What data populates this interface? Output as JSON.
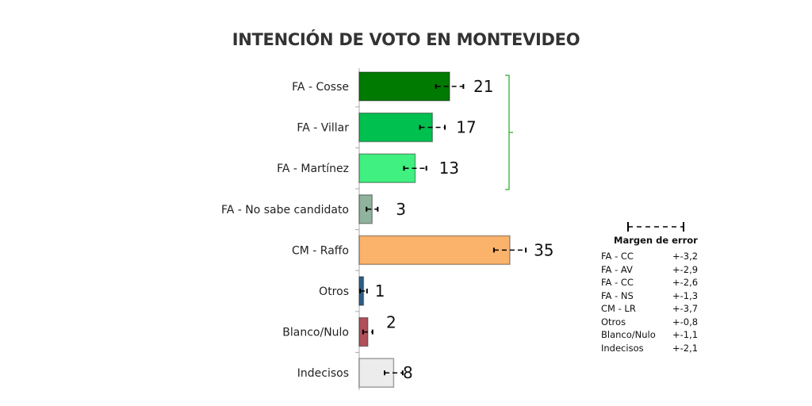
{
  "chart_data": {
    "type": "bar",
    "orientation": "horizontal",
    "title": "INTENCIÓN DE VOTO EN MONTEVIDEO",
    "categories": [
      "FA - Cosse",
      "FA - Villar",
      "FA - Martínez",
      "FA - No sabe candidato",
      "CM - Raffo",
      "Otros",
      "Blanco/Nulo",
      "Indecisos"
    ],
    "values": [
      21,
      17,
      13,
      3,
      35,
      1,
      2,
      8
    ],
    "errors": [
      3.2,
      2.9,
      2.6,
      1.3,
      3.7,
      0.8,
      1.1,
      2.1
    ],
    "colors": [
      "#007a00",
      "#00c050",
      "#40f080",
      "#8fb39c",
      "#fbb36c",
      "#2f5f8a",
      "#b0505c",
      "#ececec"
    ],
    "bracket_color": "#4cb84c",
    "xlim": [
      0,
      35
    ],
    "legend": {
      "title": "Margen de error",
      "rows": [
        [
          "FA - CC",
          "+-3,2"
        ],
        [
          "FA - AV",
          "+-2,9"
        ],
        [
          "FA - CC",
          "+-2,6"
        ],
        [
          "FA - NS",
          "+-1,3"
        ],
        [
          "CM - LR",
          "+-3,7"
        ],
        [
          "Otros",
          "+-0,8"
        ],
        [
          "Blanco/Nulo",
          "+-1,1"
        ],
        [
          "Indecisos",
          "+-2,1"
        ]
      ]
    }
  }
}
